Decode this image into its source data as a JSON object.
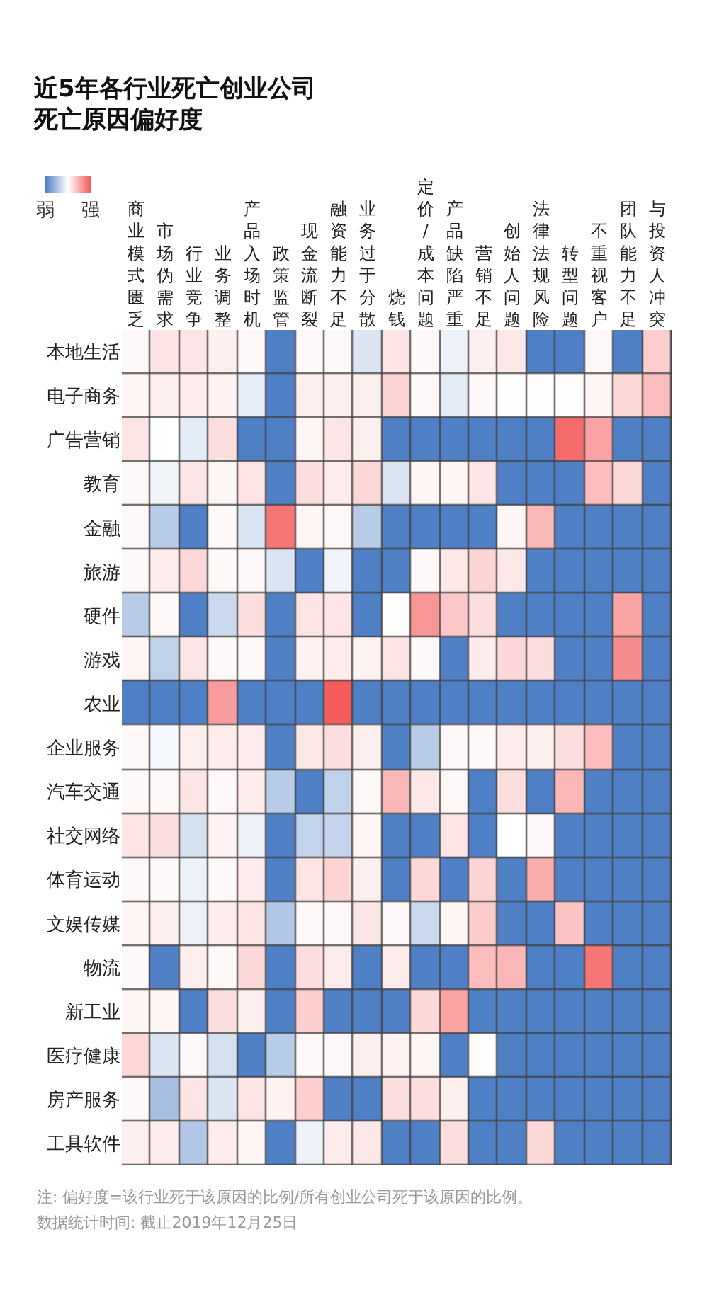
{
  "chart_data": {
    "type": "heatmap",
    "title": "近5年各行业死亡创业公司死亡原因偏好度",
    "categories": [
      "商业模式匮乏",
      "市场伪需求",
      "行业竞争",
      "业务调整",
      "产品入场时机",
      "政策监管",
      "现金流断裂",
      "融资能力不足",
      "业务过于分散",
      "烧钱",
      "定价/成本问题",
      "产品缺陷严重",
      "营销不足",
      "创始人问题",
      "法律法规风险",
      "转型问题",
      "不重视客户",
      "团队能力不足",
      "与投资人冲突"
    ],
    "y_categories": [
      "本地生活",
      "电子商务",
      "广告营销",
      "教育",
      "金融",
      "旅游",
      "硬件",
      "游戏",
      "农业",
      "企业服务",
      "汽车交通",
      "社交网络",
      "体育运动",
      "文娱传媒",
      "物流",
      "新工业",
      "医疗健康",
      "房产服务",
      "工具软件"
    ],
    "cells": [
      [
        0.52,
        0.58,
        0.58,
        0.55,
        0.52,
        0,
        0.52,
        0.52,
        0.4,
        0.58,
        0.52,
        0.45,
        0.55,
        0.57,
        0,
        0,
        0.52,
        0,
        0.65
      ],
      [
        0.53,
        0.55,
        0.56,
        0.54,
        0.43,
        0,
        0.55,
        0.55,
        0.55,
        0.63,
        0.52,
        0.42,
        0.52,
        0.51,
        0.51,
        0.51,
        0.53,
        0.62,
        0.7
      ],
      [
        0.58,
        0.5,
        0.42,
        0.6,
        0,
        0,
        0.53,
        0.58,
        0.55,
        0,
        0,
        0,
        0,
        0,
        0,
        0.95,
        0.78,
        0,
        0
      ],
      [
        0.52,
        0.46,
        0.58,
        0.53,
        0.58,
        0,
        0.6,
        0.56,
        0.62,
        0.4,
        0.53,
        0.53,
        0.58,
        0,
        0,
        0,
        0.7,
        0.62,
        0
      ],
      [
        0.52,
        0.3,
        0,
        0.52,
        0.4,
        0.92,
        0.53,
        0.52,
        0.3,
        0,
        0,
        0,
        0,
        0.53,
        0.72,
        0,
        0,
        0,
        0
      ],
      [
        0.52,
        0.56,
        0.62,
        0.52,
        0.52,
        0.4,
        0,
        0.46,
        0,
        0,
        0.52,
        0.57,
        0.63,
        0.57,
        0,
        0,
        0,
        0,
        0
      ],
      [
        0.3,
        0.52,
        0,
        0.35,
        0.6,
        0,
        0.58,
        0.58,
        0,
        0.51,
        0.82,
        0.67,
        0.6,
        0,
        0,
        0,
        0,
        0.78,
        0
      ],
      [
        0.53,
        0.32,
        0.58,
        0.52,
        0.52,
        0,
        0.54,
        0.56,
        0.54,
        0.58,
        0.52,
        0,
        0.56,
        0.62,
        0.6,
        0,
        0,
        0.85,
        0
      ],
      [
        0,
        0,
        0,
        0.8,
        0,
        0,
        0,
        1.0,
        0,
        0,
        0,
        0,
        0,
        0,
        0,
        0,
        0,
        0,
        0
      ],
      [
        0.52,
        0.47,
        0.55,
        0.56,
        0.56,
        0,
        0.57,
        0.6,
        0.55,
        0,
        0.3,
        0.52,
        0.52,
        0.56,
        0.55,
        0.6,
        0.7,
        0,
        0
      ],
      [
        0.52,
        0.52,
        0.58,
        0.52,
        0.56,
        0.3,
        0,
        0.32,
        0.52,
        0.72,
        0.57,
        0.52,
        0,
        0.6,
        0,
        0.72,
        0,
        0,
        0
      ],
      [
        0.58,
        0.6,
        0.38,
        0.54,
        0.45,
        0,
        0.33,
        0.33,
        0.53,
        0,
        0,
        0.58,
        0,
        0.5,
        0.52,
        0,
        0,
        0,
        0
      ],
      [
        0.52,
        0.52,
        0.45,
        0.52,
        0.56,
        0,
        0.58,
        0.63,
        0.55,
        0,
        0.62,
        0,
        0.63,
        0,
        0.75,
        0,
        0,
        0,
        0
      ],
      [
        0.53,
        0.55,
        0.45,
        0.56,
        0.58,
        0.28,
        0.52,
        0.52,
        0.58,
        0.52,
        0.35,
        0.53,
        0.66,
        0,
        0,
        0.68,
        0,
        0,
        0
      ],
      [
        0.52,
        0,
        0.55,
        0.52,
        0.62,
        0,
        0.6,
        0.56,
        0,
        0.56,
        0,
        0,
        0.7,
        0.72,
        0,
        0,
        0.92,
        0,
        0
      ],
      [
        0.53,
        0.53,
        0,
        0.6,
        0.55,
        0,
        0.65,
        0,
        0,
        0,
        0.62,
        0.78,
        0,
        0,
        0,
        0,
        0,
        0,
        0
      ],
      [
        0.62,
        0.4,
        0.52,
        0.38,
        0,
        0.3,
        0.52,
        0.52,
        0.55,
        0.54,
        0.53,
        0,
        0.51,
        0,
        0,
        0,
        0,
        0,
        0
      ],
      [
        0.52,
        0.25,
        0.58,
        0.4,
        0.58,
        0.54,
        0.65,
        0,
        0,
        0.6,
        0.6,
        0.55,
        0,
        0,
        0,
        0,
        0,
        0,
        0
      ],
      [
        0.55,
        0.56,
        0.28,
        0.56,
        0.53,
        0,
        0.45,
        0.56,
        0.57,
        0,
        0,
        0.6,
        0,
        0,
        0.62,
        0,
        0,
        0,
        0
      ]
    ],
    "clim": [
      0,
      1
    ],
    "cticks": [
      {
        "value": 0,
        "label": "弱"
      },
      {
        "value": 1,
        "label": "强"
      }
    ],
    "annotations": [
      "注: 偏好度=该行业死于该原因的比例/所有创业公司死于该原因的比例。",
      "数据统计时间: 截止2019年12月25日"
    ]
  }
}
